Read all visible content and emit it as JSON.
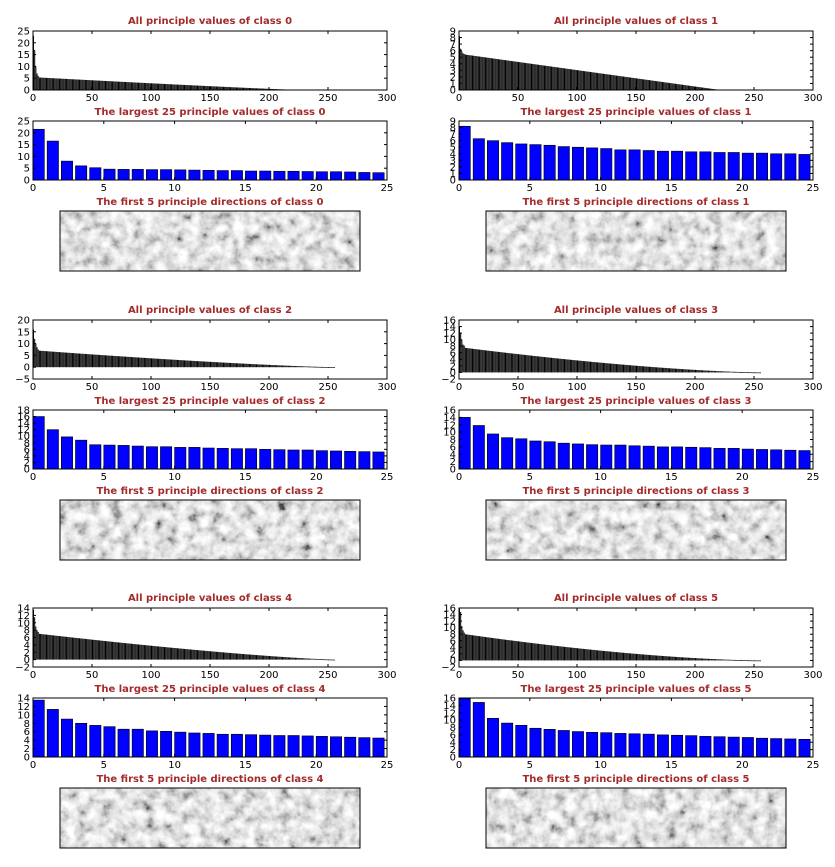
{
  "colors": {
    "title": "#a52a2a",
    "all_values": "#000000",
    "top25": "#0000ff",
    "axes": "#000000",
    "background": "#ffffff"
  },
  "chart_data": [
    {
      "class_id": 0,
      "all": {
        "type": "bar",
        "title": "All principle values of class 0",
        "n": 219,
        "first_values": [
          23,
          17,
          10,
          7,
          6
        ],
        "tail_start": 5.3,
        "tail_end": 0.15,
        "decay": 1.1,
        "xlim": [
          0,
          300
        ],
        "ylim": [
          0,
          25
        ],
        "xticks": [
          "0",
          "50",
          "100",
          "150",
          "200",
          "250",
          "300"
        ],
        "yticks": [
          "0",
          "5",
          "10",
          "15",
          "20",
          "25"
        ]
      },
      "top25": {
        "type": "bar",
        "title": "The largest 25 principle values of class 0",
        "values": [
          21.5,
          16.5,
          8.0,
          6.0,
          5.2,
          4.6,
          4.5,
          4.5,
          4.4,
          4.4,
          4.3,
          4.2,
          4.1,
          4.0,
          4.0,
          3.8,
          3.8,
          3.7,
          3.7,
          3.6,
          3.5,
          3.5,
          3.4,
          3.2,
          3.1
        ],
        "xlim": [
          0,
          25
        ],
        "ylim": [
          0,
          25
        ],
        "xticks": [
          "0",
          "5",
          "10",
          "15",
          "20",
          "25"
        ],
        "yticks": [
          "0",
          "5",
          "10",
          "15",
          "20",
          "25"
        ]
      },
      "directions": {
        "title": "The first 5 principle directions of class 0"
      }
    },
    {
      "class_id": 1,
      "all": {
        "type": "bar",
        "title": "All principle values of class 1",
        "n": 220,
        "first_values": [
          8.2,
          6.3,
          5.9,
          5.6,
          5.5
        ],
        "tail_start": 5.4,
        "tail_end": 0.05,
        "decay": 1.0,
        "xlim": [
          0,
          300
        ],
        "ylim": [
          0,
          9
        ],
        "xticks": [
          "0",
          "50",
          "100",
          "150",
          "200",
          "250",
          "300"
        ],
        "yticks": [
          "0",
          "1",
          "2",
          "3",
          "4",
          "5",
          "6",
          "7",
          "8",
          "9"
        ]
      },
      "top25": {
        "type": "bar",
        "title": "The largest 25 principle values of class 1",
        "values": [
          8.2,
          6.3,
          6.0,
          5.7,
          5.5,
          5.4,
          5.3,
          5.1,
          5.0,
          4.9,
          4.8,
          4.6,
          4.6,
          4.5,
          4.4,
          4.4,
          4.3,
          4.3,
          4.2,
          4.2,
          4.1,
          4.1,
          4.0,
          4.0,
          3.9
        ],
        "xlim": [
          0,
          25
        ],
        "ylim": [
          0,
          9
        ],
        "xticks": [
          "0",
          "5",
          "10",
          "15",
          "20",
          "25"
        ],
        "yticks": [
          "0",
          "1",
          "2",
          "3",
          "4",
          "5",
          "6",
          "7",
          "8",
          "9"
        ]
      },
      "directions": {
        "title": "The first 5 principle directions of class 1"
      }
    },
    {
      "class_id": 2,
      "all": {
        "type": "bar",
        "title": "All principle values of class 2",
        "n": 256,
        "first_values": [
          16,
          12,
          10,
          8.5,
          7.5
        ],
        "tail_start": 7.0,
        "tail_end": 0.0,
        "decay": 1.3,
        "xlim": [
          0,
          300
        ],
        "ylim": [
          -5,
          20
        ],
        "xticks": [
          "0",
          "50",
          "100",
          "150",
          "200",
          "250",
          "300"
        ],
        "yticks": [
          "−5",
          "0",
          "5",
          "10",
          "15",
          "20"
        ]
      },
      "top25": {
        "type": "bar",
        "title": "The largest 25 principle values of class 2",
        "values": [
          16.0,
          12.0,
          9.8,
          8.8,
          7.4,
          7.3,
          7.2,
          7.0,
          6.8,
          6.8,
          6.6,
          6.6,
          6.4,
          6.3,
          6.2,
          6.2,
          6.0,
          5.9,
          5.8,
          5.8,
          5.6,
          5.5,
          5.4,
          5.3,
          5.2
        ],
        "xlim": [
          0,
          25
        ],
        "ylim": [
          0,
          18
        ],
        "xticks": [
          "0",
          "5",
          "10",
          "15",
          "20",
          "25"
        ],
        "yticks": [
          "0",
          "2",
          "4",
          "6",
          "8",
          "10",
          "12",
          "14",
          "16",
          "18"
        ]
      },
      "directions": {
        "title": "The first 5 principle directions of class 2"
      }
    },
    {
      "class_id": 3,
      "all": {
        "type": "bar",
        "title": "All principle values of class 3",
        "n": 256,
        "first_values": [
          14,
          12,
          10,
          8.5,
          8.2
        ],
        "tail_start": 7.5,
        "tail_end": 0.0,
        "decay": 1.5,
        "xlim": [
          0,
          300
        ],
        "ylim": [
          -2,
          16
        ],
        "xticks": [
          "0",
          "50",
          "100",
          "150",
          "200",
          "250",
          "300"
        ],
        "yticks": [
          "−2",
          "0",
          "2",
          "4",
          "6",
          "8",
          "10",
          "12",
          "14",
          "16"
        ]
      },
      "top25": {
        "type": "bar",
        "title": "The largest 25 principle values of class 3",
        "values": [
          14.0,
          11.8,
          9.5,
          8.5,
          8.2,
          7.6,
          7.4,
          7.0,
          6.8,
          6.6,
          6.5,
          6.5,
          6.3,
          6.2,
          6.0,
          6.0,
          5.9,
          5.8,
          5.6,
          5.6,
          5.4,
          5.3,
          5.2,
          5.1,
          5.0
        ],
        "xlim": [
          0,
          25
        ],
        "ylim": [
          0,
          16
        ],
        "xticks": [
          "0",
          "5",
          "10",
          "15",
          "20",
          "25"
        ],
        "yticks": [
          "0",
          "2",
          "4",
          "6",
          "8",
          "10",
          "12",
          "14",
          "16"
        ]
      },
      "directions": {
        "title": "The first 5 principle directions of class 3"
      }
    },
    {
      "class_id": 4,
      "all": {
        "type": "bar",
        "title": "All principle values of class 4",
        "n": 256,
        "first_values": [
          13.5,
          11.5,
          9,
          8,
          7.5
        ],
        "tail_start": 7.0,
        "tail_end": 0.0,
        "decay": 1.3,
        "xlim": [
          0,
          300
        ],
        "ylim": [
          -2,
          14
        ],
        "xticks": [
          "0",
          "50",
          "100",
          "150",
          "200",
          "250",
          "300"
        ],
        "yticks": [
          "−2",
          "0",
          "2",
          "4",
          "6",
          "8",
          "10",
          "12",
          "14"
        ]
      },
      "top25": {
        "type": "bar",
        "title": "The largest 25 principle values of class 4",
        "values": [
          13.5,
          11.3,
          9.0,
          8.0,
          7.5,
          7.2,
          6.6,
          6.6,
          6.2,
          6.1,
          5.9,
          5.7,
          5.6,
          5.4,
          5.4,
          5.3,
          5.2,
          5.1,
          5.1,
          5.0,
          4.9,
          4.8,
          4.7,
          4.6,
          4.5
        ],
        "xlim": [
          0,
          25
        ],
        "ylim": [
          0,
          14
        ],
        "xticks": [
          "0",
          "5",
          "10",
          "15",
          "20",
          "25"
        ],
        "yticks": [
          "0",
          "2",
          "4",
          "6",
          "8",
          "10",
          "12",
          "14"
        ]
      },
      "directions": {
        "title": "The first 5 principle directions of class 4"
      }
    },
    {
      "class_id": 5,
      "all": {
        "type": "bar",
        "title": "All principle values of class 5",
        "n": 256,
        "first_values": [
          15.8,
          14.8,
          10.5,
          9.2,
          8.5
        ],
        "tail_start": 8.0,
        "tail_end": 0.0,
        "decay": 1.6,
        "xlim": [
          0,
          300
        ],
        "ylim": [
          -2,
          16
        ],
        "xticks": [
          "0",
          "50",
          "100",
          "150",
          "200",
          "250",
          "300"
        ],
        "yticks": [
          "−2",
          "0",
          "2",
          "4",
          "6",
          "8",
          "10",
          "12",
          "14",
          "16"
        ]
      },
      "top25": {
        "type": "bar",
        "title": "The largest 25 principle values of class 5",
        "values": [
          15.8,
          14.8,
          10.5,
          9.2,
          8.6,
          7.8,
          7.5,
          7.2,
          6.9,
          6.7,
          6.6,
          6.4,
          6.3,
          6.2,
          6.0,
          5.9,
          5.8,
          5.6,
          5.5,
          5.4,
          5.3,
          5.1,
          5.0,
          4.9,
          4.8
        ],
        "xlim": [
          0,
          25
        ],
        "ylim": [
          0,
          16
        ],
        "xticks": [
          "0",
          "5",
          "10",
          "15",
          "20",
          "25"
        ],
        "yticks": [
          "0",
          "2",
          "4",
          "6",
          "8",
          "10",
          "12",
          "14",
          "16"
        ]
      },
      "directions": {
        "title": "The first 5 principle directions of class 5"
      }
    }
  ]
}
